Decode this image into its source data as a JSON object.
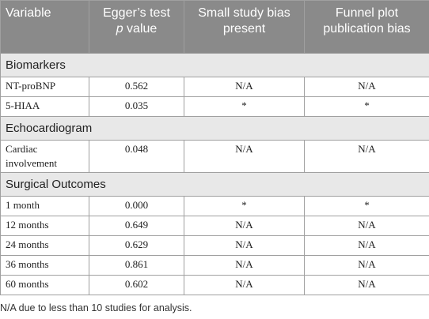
{
  "table": {
    "header": {
      "variable": "Variable",
      "egger": "Egger’s test",
      "egger_italic": "p",
      "egger_rest": "value",
      "small": "Small study bias present",
      "funnel": "Funnel plot publication bias"
    },
    "sections": [
      {
        "title": "Biomarkers",
        "rows": [
          [
            "NT-proBNP",
            "0.562",
            "N/A",
            "N/A"
          ],
          [
            "5-HIAA",
            "0.035",
            "*",
            "*"
          ]
        ]
      },
      {
        "title": "Echocardiogram",
        "rows": [
          [
            "Cardiac involvement",
            "0.048",
            "N/A",
            "N/A"
          ]
        ]
      },
      {
        "title": "Surgical Outcomes",
        "rows": [
          [
            "1 month",
            "0.000",
            "*",
            "*"
          ],
          [
            "12 months",
            "0.649",
            "N/A",
            "N/A"
          ],
          [
            "24 months",
            "0.629",
            "N/A",
            "N/A"
          ],
          [
            "36 months",
            "0.861",
            "N/A",
            "N/A"
          ],
          [
            "60 months",
            "0.602",
            "N/A",
            "N/A"
          ]
        ]
      }
    ],
    "footnote": "N/A due to less than 10 studies for analysis."
  }
}
